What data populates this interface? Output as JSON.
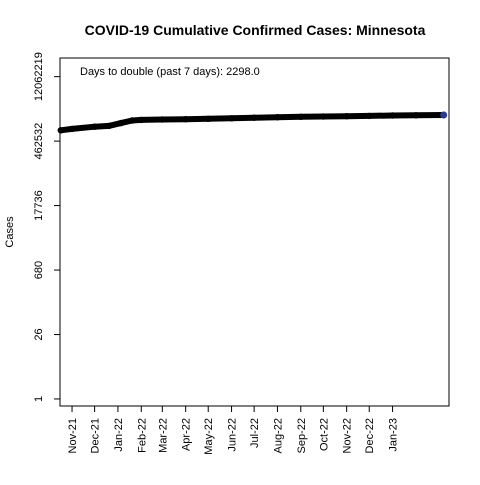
{
  "chart_data": {
    "type": "line",
    "title": "COVID-19 Cumulative Confirmed Cases: Minnesota",
    "xlabel": "",
    "ylabel": "Cases",
    "y_scale": "log",
    "ylim": [
      0.7,
      31000000
    ],
    "annotation": "Days to double (past 7 days): 2298.0",
    "y_ticks": [
      {
        "value": 1,
        "label": "1"
      },
      {
        "value": 26,
        "label": "26"
      },
      {
        "value": 680,
        "label": "680"
      },
      {
        "value": 17736,
        "label": "17736"
      },
      {
        "value": 462532,
        "label": "462532"
      },
      {
        "value": 12062219,
        "label": "12062219"
      }
    ],
    "x_ticks": [
      {
        "date": "2021-11-01",
        "label": "Nov-21"
      },
      {
        "date": "2021-12-01",
        "label": "Dec-21"
      },
      {
        "date": "2022-01-01",
        "label": "Jan-22"
      },
      {
        "date": "2022-02-01",
        "label": "Feb-22"
      },
      {
        "date": "2022-03-01",
        "label": "Mar-22"
      },
      {
        "date": "2022-04-01",
        "label": "Apr-22"
      },
      {
        "date": "2022-05-01",
        "label": "May-22"
      },
      {
        "date": "2022-06-01",
        "label": "Jun-22"
      },
      {
        "date": "2022-07-01",
        "label": "Jul-22"
      },
      {
        "date": "2022-08-01",
        "label": "Aug-22"
      },
      {
        "date": "2022-09-01",
        "label": "Sep-22"
      },
      {
        "date": "2022-10-01",
        "label": "Oct-22"
      },
      {
        "date": "2022-11-01",
        "label": "Nov-22"
      },
      {
        "date": "2022-12-01",
        "label": "Dec-22"
      },
      {
        "date": "2023-01-01",
        "label": "Jan-23"
      }
    ],
    "xlim": [
      "2021-10-16",
      "2023-03-17"
    ],
    "series": [
      {
        "points": [
          {
            "x": "2021-10-17",
            "y": 800000
          },
          {
            "x": "2021-11-01",
            "y": 860000
          },
          {
            "x": "2021-12-01",
            "y": 960000
          },
          {
            "x": "2021-12-20",
            "y": 1000000
          },
          {
            "x": "2022-01-05",
            "y": 1150000
          },
          {
            "x": "2022-01-20",
            "y": 1310000
          },
          {
            "x": "2022-02-01",
            "y": 1350000
          },
          {
            "x": "2022-03-01",
            "y": 1380000
          },
          {
            "x": "2022-04-01",
            "y": 1400000
          },
          {
            "x": "2022-05-01",
            "y": 1430000
          },
          {
            "x": "2022-06-01",
            "y": 1470000
          },
          {
            "x": "2022-07-01",
            "y": 1510000
          },
          {
            "x": "2022-08-01",
            "y": 1550000
          },
          {
            "x": "2022-09-01",
            "y": 1580000
          },
          {
            "x": "2022-10-01",
            "y": 1610000
          },
          {
            "x": "2022-11-01",
            "y": 1630000
          },
          {
            "x": "2022-12-01",
            "y": 1660000
          },
          {
            "x": "2023-01-01",
            "y": 1690000
          },
          {
            "x": "2023-02-01",
            "y": 1710000
          },
          {
            "x": "2023-03-10",
            "y": 1730000
          }
        ]
      }
    ]
  }
}
